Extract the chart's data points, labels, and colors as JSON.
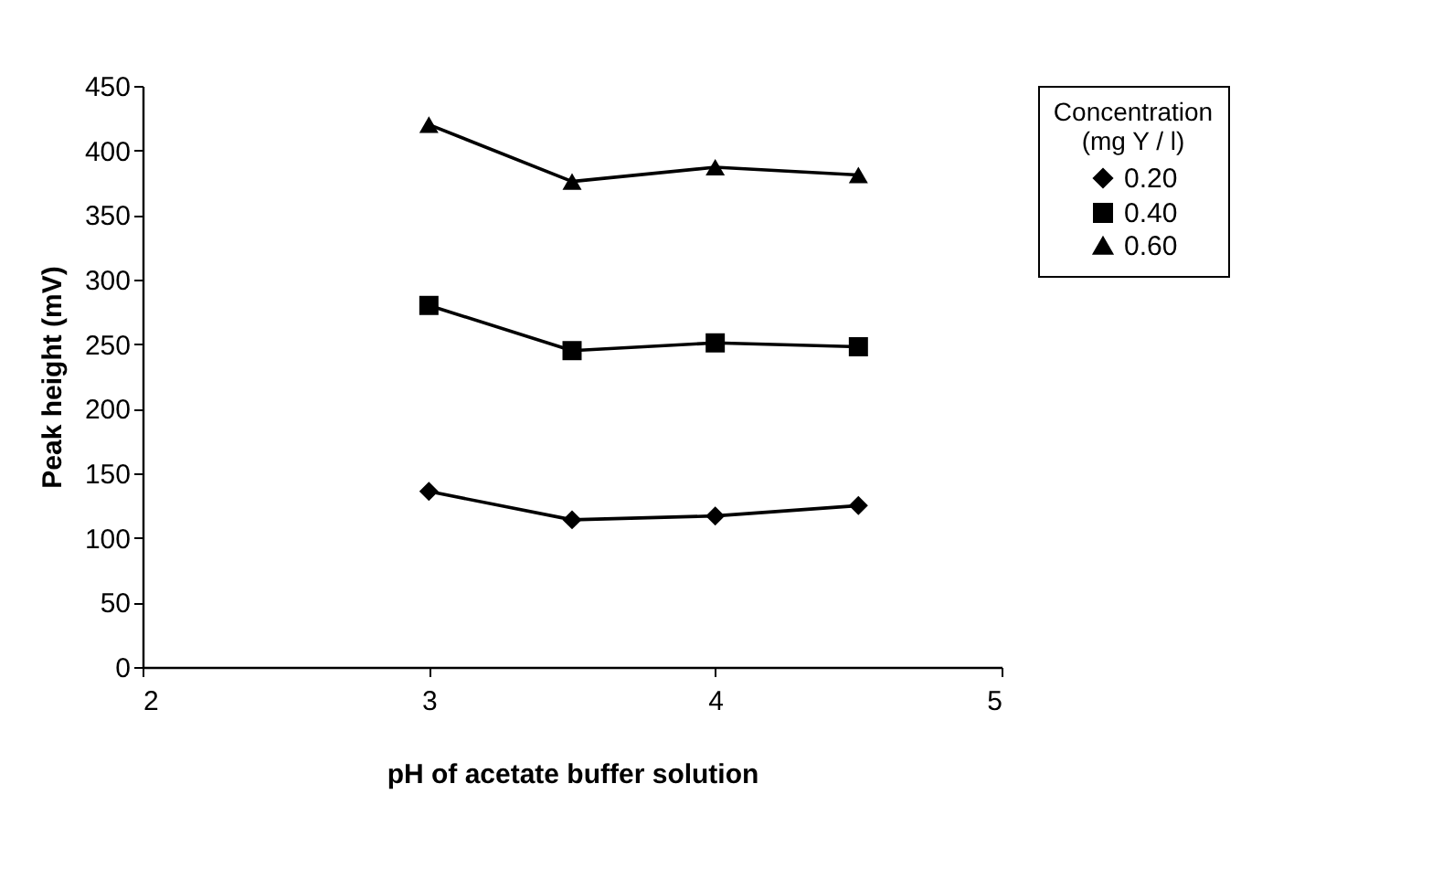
{
  "chart_data": {
    "type": "line",
    "xlabel": "pH of acetate buffer solution",
    "ylabel": "Peak height (mV)",
    "legend_title": "Concentration\n(mg Y / l)",
    "legend": "right",
    "x": [
      3,
      3.5,
      4,
      4.5
    ],
    "series": [
      {
        "name": "0.20",
        "color": "#000000",
        "marker": "diamond",
        "values": [
          136,
          114,
          117,
          125
        ]
      },
      {
        "name": "0.40",
        "color": "#000000",
        "marker": "square",
        "values": [
          280,
          245,
          251,
          248
        ]
      },
      {
        "name": "0.60",
        "color": "#000000",
        "marker": "triangle",
        "values": [
          420,
          376,
          387,
          381
        ]
      }
    ],
    "xlim": [
      2,
      5
    ],
    "xticks": [
      2,
      3,
      4,
      5
    ],
    "ylim": [
      0,
      450
    ],
    "yticks": [
      0,
      50,
      100,
      150,
      200,
      250,
      300,
      350,
      400,
      450
    ],
    "grid": false
  }
}
